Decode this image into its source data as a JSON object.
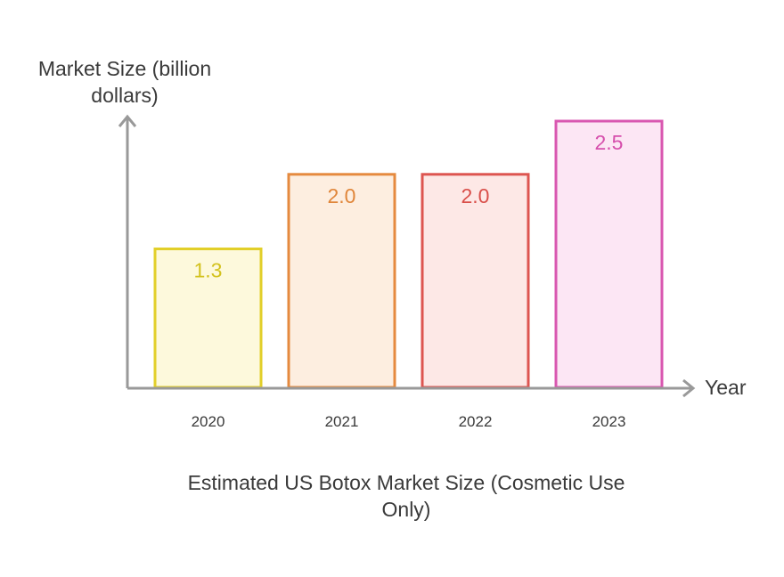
{
  "chart_data": {
    "type": "bar",
    "title": "Estimated US Botox Market Size (Cosmetic Use Only)",
    "xlabel": "Year",
    "ylabel": "Market Size (billion dollars)",
    "categories": [
      "2020",
      "2021",
      "2022",
      "2023"
    ],
    "values": [
      1.3,
      2.0,
      2.0,
      2.5
    ],
    "value_labels": [
      "1.3",
      "2.0",
      "2.0",
      "2.5"
    ],
    "ylim": [
      0,
      2.5
    ],
    "grid": false,
    "colors": [
      {
        "stroke": "#e2cf29",
        "fill": "#fdf9dc",
        "text": "#d3c21e"
      },
      {
        "stroke": "#e58a3f",
        "fill": "#fdeee0",
        "text": "#e0863a"
      },
      {
        "stroke": "#dd5550",
        "fill": "#fde8e6",
        "text": "#d94f4a"
      },
      {
        "stroke": "#d957b0",
        "fill": "#fce6f4",
        "text": "#d64fac"
      }
    ],
    "axis_color": "#999999"
  }
}
